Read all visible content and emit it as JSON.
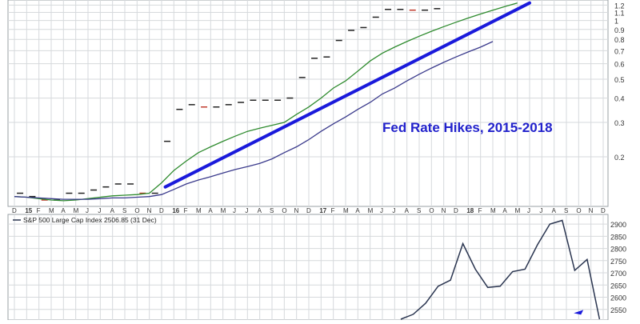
{
  "chart_data": [
    {
      "type": "line",
      "title": "Fed Rate Hikes, 2015-2018",
      "scale": "log",
      "grid": true,
      "x_tick_labels": [
        "D",
        "15",
        "F",
        "M",
        "A",
        "M",
        "J",
        "J",
        "A",
        "S",
        "O",
        "N",
        "D",
        "16",
        "F",
        "M",
        "A",
        "M",
        "J",
        "J",
        "A",
        "S",
        "O",
        "N",
        "D",
        "17",
        "F",
        "M",
        "A",
        "M",
        "J",
        "J",
        "A",
        "S",
        "O",
        "N",
        "D",
        "18",
        "F",
        "M",
        "A",
        "M",
        "J",
        "J",
        "A",
        "S",
        "O",
        "N",
        "D"
      ],
      "y_tick_labels": [
        "0.2",
        "0.3",
        "0.4",
        "0.5",
        "0.6",
        "0.7",
        "0.8",
        "0.9",
        "1",
        "1.1",
        "1.2"
      ],
      "ylim": [
        0.12,
        1.25
      ],
      "series": [
        {
          "name": "",
          "style": "dashes",
          "color": "#222222",
          "values": [
            0.13,
            0.125,
            0.12,
            0.12,
            0.13,
            0.13,
            0.135,
            0.14,
            0.145,
            0.145,
            0.13,
            0.13,
            0.24,
            0.35,
            0.37,
            0.36,
            0.36,
            0.37,
            0.38,
            0.39,
            0.39,
            0.39,
            0.4,
            0.51,
            0.64,
            0.65,
            0.79,
            0.89,
            0.92,
            1.04,
            1.14,
            1.14,
            1.13,
            1.13,
            1.15
          ]
        },
        {
          "name": "",
          "style": "line",
          "color": "#2e8b2e",
          "values": [
            0.125,
            0.124,
            0.122,
            0.12,
            0.119,
            0.12,
            0.122,
            0.124,
            0.126,
            0.127,
            0.128,
            0.13,
            0.147,
            0.17,
            0.19,
            0.21,
            0.225,
            0.24,
            0.255,
            0.27,
            0.28,
            0.29,
            0.3,
            0.33,
            0.36,
            0.4,
            0.45,
            0.49,
            0.55,
            0.62,
            0.68,
            0.73,
            0.78,
            0.83,
            0.88,
            0.93,
            0.98,
            1.03,
            1.08,
            1.13,
            1.18,
            1.23
          ]
        },
        {
          "name": "",
          "style": "line",
          "color": "#3a3a8c",
          "values": [
            0.125,
            0.124,
            0.123,
            0.122,
            0.121,
            0.121,
            0.121,
            0.122,
            0.123,
            0.123,
            0.124,
            0.125,
            0.128,
            0.136,
            0.145,
            0.152,
            0.158,
            0.165,
            0.172,
            0.178,
            0.185,
            0.195,
            0.21,
            0.225,
            0.245,
            0.27,
            0.295,
            0.32,
            0.35,
            0.38,
            0.42,
            0.45,
            0.49,
            0.53,
            0.57,
            0.61,
            0.65,
            0.69,
            0.73,
            0.78
          ]
        }
      ],
      "trend_line": {
        "color": "#1a1adb",
        "from": 0.14,
        "to": 1.23
      }
    },
    {
      "type": "line",
      "legend": "S&P 500 Large Cap Index 2506.85 (31 Dec)",
      "grid": true,
      "y_tick_labels": [
        "2550",
        "2600",
        "2650",
        "2700",
        "2750",
        "2800",
        "2850",
        "2900"
      ],
      "ylim": [
        2500,
        2920
      ],
      "series": [
        {
          "name": "S&P 500 Large Cap Index",
          "color": "#2a3550",
          "values": [
            2510,
            2530,
            2575,
            2645,
            2670,
            2820,
            2715,
            2640,
            2645,
            2705,
            2715,
            2815,
            2900,
            2915,
            2710,
            2755,
            2510
          ]
        }
      ],
      "x_tick_labels": []
    }
  ]
}
